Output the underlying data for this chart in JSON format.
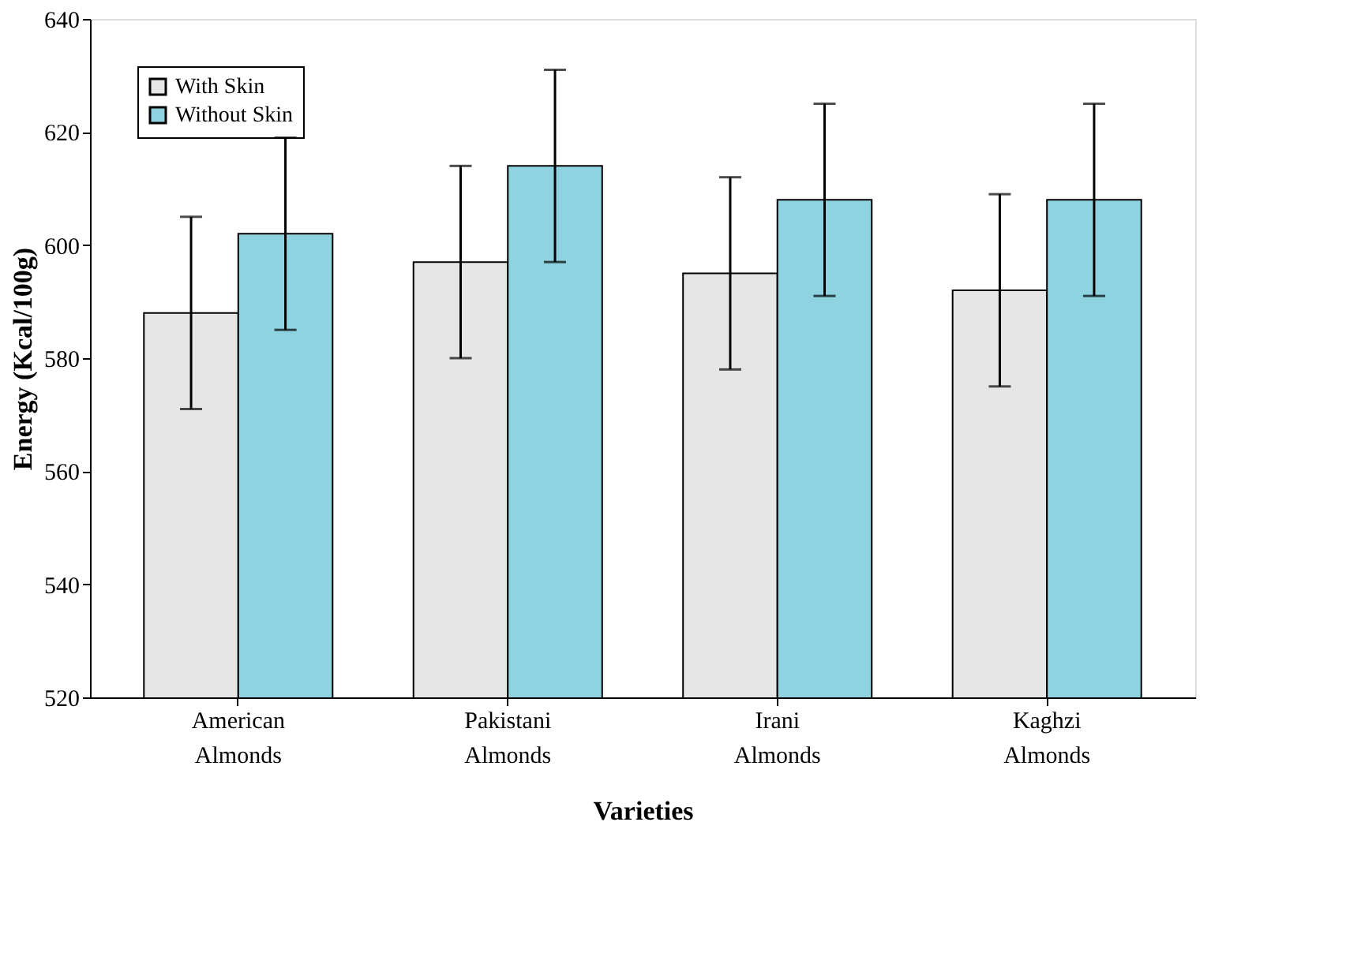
{
  "chart_data": {
    "type": "bar",
    "xlabel": "Varieties",
    "ylabel": "Energy (Kcal/100g)",
    "categories": [
      "American Almonds",
      "Pakistani Almonds",
      "Irani Almonds",
      "Kaghzi Almonds"
    ],
    "series": [
      {
        "name": "With Skin",
        "color": "#e6e6e6",
        "values": [
          588,
          597,
          595,
          592
        ],
        "errors": [
          17,
          17,
          17,
          17
        ]
      },
      {
        "name": "Without Skin",
        "color": "#8fd3e0",
        "values": [
          602,
          614,
          608,
          608
        ],
        "errors": [
          17,
          17,
          17,
          17
        ]
      }
    ],
    "ylim": [
      520,
      640
    ],
    "yticks": [
      520,
      540,
      560,
      580,
      600,
      620,
      640
    ],
    "grid": false,
    "legend": "top left"
  }
}
